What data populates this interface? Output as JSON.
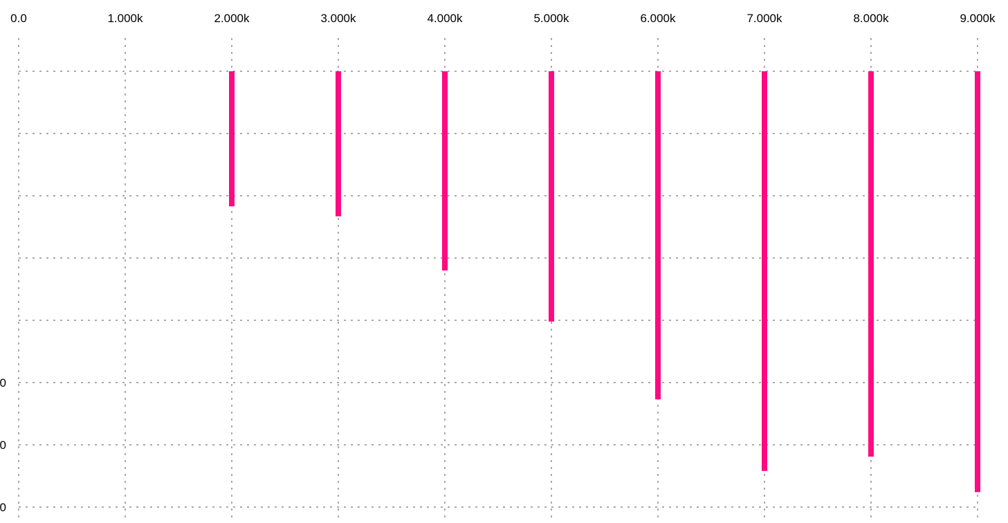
{
  "chart_data": {
    "type": "bar",
    "orientation": "vertical",
    "axis_position": "top",
    "x_ticks": [
      "0.0",
      "1.000k",
      "2.000k",
      "3.000k",
      "4.000k",
      "5.000k",
      "6.000k",
      "7.000k",
      "8.000k",
      "9.000k"
    ],
    "xlim": [
      0,
      9000
    ],
    "y_ticks_visible": [
      "0",
      "0",
      "0"
    ],
    "y_gridlines": 8,
    "bar_base": 0,
    "ylim": [
      0,
      7
    ],
    "x_values": [
      2000,
      3000,
      4000,
      5000,
      6000,
      7000,
      8000,
      9000
    ],
    "values": [
      2.17,
      2.33,
      3.2,
      4.02,
      5.27,
      6.42,
      6.19,
      6.76
    ],
    "grid": true,
    "colors": {
      "bar": "#ff0a82",
      "grid": "#555555",
      "text": "#000000"
    }
  }
}
